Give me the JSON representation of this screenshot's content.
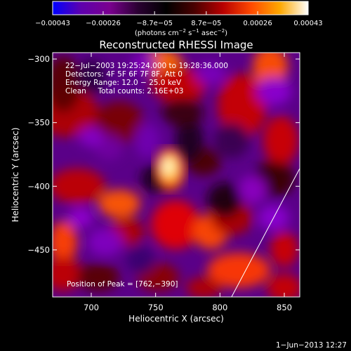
{
  "chart_data": {
    "type": "heatmap",
    "title": "Reconstructed RHESSI Image",
    "xlabel": "Heliocentric X (arcsec)",
    "ylabel": "Heliocentric Y (arcsec)",
    "xlim": [
      670,
      862
    ],
    "ylim": [
      -487,
      -295
    ],
    "x_ticks": [
      700,
      750,
      800,
      850
    ],
    "x_tick_labels": [
      "700",
      "750",
      "800",
      "850"
    ],
    "y_ticks": [
      -300,
      -350,
      -400,
      -450
    ],
    "y_tick_labels": [
      "−300",
      "−350",
      "−400",
      "−450"
    ],
    "colorbar": {
      "ticks": [
        -0.00043,
        -0.00026,
        -8.7e-05,
        8.7e-05,
        0.00026,
        0.00043
      ],
      "tick_labels": [
        "−0.00043",
        "−0.00026",
        "−8.7e−05",
        "8.7e−05",
        "0.00026",
        "0.00043"
      ],
      "units_text": "(photons cm",
      "units_sup1": "−2",
      "units_mid": " s",
      "units_sup2": "−1",
      "units_mid2": " asec",
      "units_sup3": "−2",
      "units_end": ")",
      "stops": [
        "#0000ff",
        "#5e00ad",
        "#7a008f",
        "#2a0032",
        "#000000",
        "#4a0000",
        "#b80000",
        "#ff4a00",
        "#ffa800",
        "#ffffff"
      ]
    },
    "annotations": [
      "22−Jul−2003 19:25:24.000 to 19:28:36.000",
      "Detectors: 4F 5F 6F 7F 8F, Att 0",
      "Energy Range: 12.0 − 25.0 keV",
      "Clean     Total counts: 2.16E+03"
    ],
    "peak_label": "Position of Peak = [762,−390]",
    "peak": {
      "x": 762,
      "y": -390
    },
    "limb_line": [
      [
        809,
        -487
      ],
      [
        862,
        -386
      ]
    ],
    "timestamp": "1−Jun−2013 12:27"
  }
}
